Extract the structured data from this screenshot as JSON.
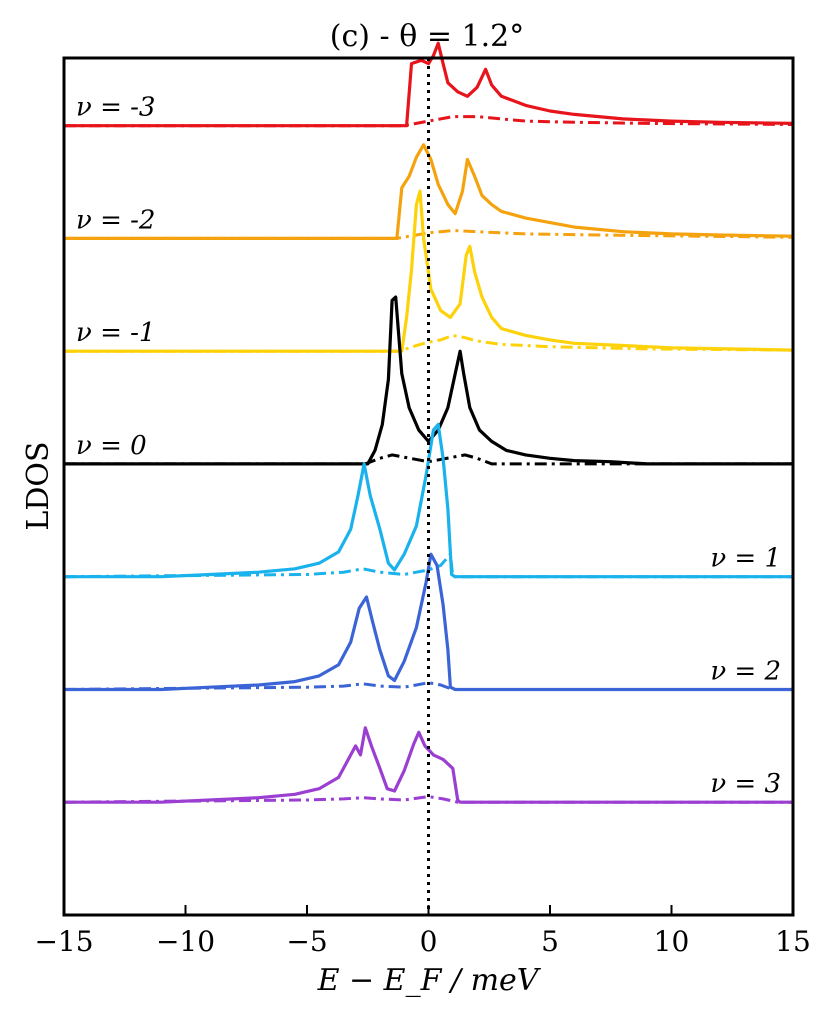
{
  "chart_data": {
    "type": "line",
    "title": "(c) - θ = 1.2°",
    "xlabel": "E − E_F / meV",
    "ylabel": "LDOS",
    "xlim": [
      -15,
      15
    ],
    "xticks": [
      -15,
      -10,
      -5,
      0,
      5,
      10,
      15
    ],
    "xtick_labels": [
      "−15",
      "−10",
      "−5",
      "0",
      "5",
      "10",
      "15"
    ],
    "ylim": [
      -1,
      6.6
    ],
    "yticks_hidden": true,
    "fermi_level_line": {
      "x": 0,
      "style": "dotted",
      "color": "#000000"
    },
    "series": [
      {
        "name": "ν = -3",
        "label": "ν = -3",
        "color": "#e8141c",
        "offset": 6,
        "label_side": "left",
        "solid": [
          [
            -15,
            0
          ],
          [
            -0.9,
            0
          ],
          [
            -0.7,
            0.55
          ],
          [
            -0.3,
            0.58
          ],
          [
            0,
            0.55
          ],
          [
            0.2,
            0.62
          ],
          [
            0.4,
            0.73
          ],
          [
            0.6,
            0.55
          ],
          [
            0.8,
            0.38
          ],
          [
            1.2,
            0.3
          ],
          [
            1.6,
            0.26
          ],
          [
            2.0,
            0.34
          ],
          [
            2.35,
            0.5
          ],
          [
            2.6,
            0.36
          ],
          [
            3.0,
            0.26
          ],
          [
            3.5,
            0.22
          ],
          [
            4.0,
            0.18
          ],
          [
            5.0,
            0.13
          ],
          [
            6.0,
            0.1
          ],
          [
            7.0,
            0.08
          ],
          [
            8.0,
            0.06
          ],
          [
            9.0,
            0.05
          ],
          [
            10.0,
            0.04
          ],
          [
            12.0,
            0.03
          ],
          [
            15.0,
            0.02
          ]
        ],
        "dashdot": [
          [
            -15,
            0
          ],
          [
            -1.0,
            0
          ],
          [
            -0.5,
            0.02
          ],
          [
            0,
            0.04
          ],
          [
            0.5,
            0.06
          ],
          [
            1.0,
            0.08
          ],
          [
            2.0,
            0.08
          ],
          [
            3.0,
            0.06
          ],
          [
            4.0,
            0.04
          ],
          [
            6.0,
            0.03
          ],
          [
            9.0,
            0.02
          ],
          [
            15.0,
            0.01
          ]
        ]
      },
      {
        "name": "ν = -2",
        "label": "ν = -2",
        "color": "#f5a20f",
        "offset": 5,
        "label_side": "left",
        "solid": [
          [
            -15,
            0
          ],
          [
            -1.3,
            0
          ],
          [
            -1.1,
            0.45
          ],
          [
            -0.8,
            0.55
          ],
          [
            -0.5,
            0.72
          ],
          [
            -0.2,
            0.83
          ],
          [
            0.1,
            0.7
          ],
          [
            0.4,
            0.48
          ],
          [
            0.8,
            0.3
          ],
          [
            1.1,
            0.22
          ],
          [
            1.4,
            0.42
          ],
          [
            1.6,
            0.7
          ],
          [
            1.9,
            0.55
          ],
          [
            2.2,
            0.38
          ],
          [
            2.6,
            0.3
          ],
          [
            3.0,
            0.24
          ],
          [
            4.0,
            0.18
          ],
          [
            5.0,
            0.14
          ],
          [
            6.0,
            0.1
          ],
          [
            7.0,
            0.08
          ],
          [
            8.0,
            0.06
          ],
          [
            10.0,
            0.04
          ],
          [
            12.0,
            0.03
          ],
          [
            15.0,
            0.02
          ]
        ],
        "dashdot": [
          [
            -15,
            0
          ],
          [
            -1.3,
            0
          ],
          [
            -0.5,
            0.03
          ],
          [
            0,
            0.05
          ],
          [
            0.5,
            0.06
          ],
          [
            1.0,
            0.07
          ],
          [
            2.0,
            0.06
          ],
          [
            4.0,
            0.04
          ],
          [
            7.0,
            0.03
          ],
          [
            15.0,
            0.01
          ]
        ]
      },
      {
        "name": "ν = -1",
        "label": "ν = -1",
        "color": "#fdd20a",
        "offset": 4,
        "label_side": "left",
        "solid": [
          [
            -15,
            0
          ],
          [
            -1.1,
            0
          ],
          [
            -0.9,
            0.3
          ],
          [
            -0.7,
            0.72
          ],
          [
            -0.5,
            1.3
          ],
          [
            -0.35,
            1.42
          ],
          [
            -0.2,
            1.0
          ],
          [
            0.1,
            0.55
          ],
          [
            0.5,
            0.36
          ],
          [
            0.9,
            0.3
          ],
          [
            1.3,
            0.42
          ],
          [
            1.55,
            0.85
          ],
          [
            1.7,
            0.93
          ],
          [
            1.9,
            0.7
          ],
          [
            2.2,
            0.48
          ],
          [
            2.6,
            0.3
          ],
          [
            3.0,
            0.2
          ],
          [
            4.0,
            0.14
          ],
          [
            5.0,
            0.1
          ],
          [
            6.0,
            0.07
          ],
          [
            8.0,
            0.05
          ],
          [
            10.0,
            0.03
          ],
          [
            15.0,
            0.01
          ]
        ],
        "dashdot": [
          [
            -15,
            0
          ],
          [
            -1.2,
            0
          ],
          [
            -0.5,
            0.05
          ],
          [
            0,
            0.08
          ],
          [
            0.5,
            0.1
          ],
          [
            1.0,
            0.14
          ],
          [
            1.5,
            0.12
          ],
          [
            2.0,
            0.09
          ],
          [
            3.0,
            0.06
          ],
          [
            5.0,
            0.04
          ],
          [
            9.0,
            0.02
          ],
          [
            15.0,
            0.01
          ]
        ]
      },
      {
        "name": "ν = 0",
        "label": "ν = 0",
        "color": "#000000",
        "offset": 3,
        "label_side": "left",
        "solid": [
          [
            -15,
            0
          ],
          [
            -2.5,
            0
          ],
          [
            -2.2,
            0.12
          ],
          [
            -1.9,
            0.35
          ],
          [
            -1.65,
            0.75
          ],
          [
            -1.5,
            1.45
          ],
          [
            -1.35,
            1.48
          ],
          [
            -1.1,
            0.8
          ],
          [
            -0.8,
            0.5
          ],
          [
            -0.4,
            0.3
          ],
          [
            0,
            0.2
          ],
          [
            0.4,
            0.3
          ],
          [
            0.8,
            0.5
          ],
          [
            1.1,
            0.8
          ],
          [
            1.3,
            1.0
          ],
          [
            1.45,
            0.8
          ],
          [
            1.7,
            0.5
          ],
          [
            2.1,
            0.3
          ],
          [
            2.6,
            0.2
          ],
          [
            3.2,
            0.12
          ],
          [
            4.0,
            0.08
          ],
          [
            5.0,
            0.05
          ],
          [
            6.0,
            0.03
          ],
          [
            7.5,
            0.02
          ],
          [
            9.0,
            0.0
          ],
          [
            15,
            0
          ]
        ],
        "dashdot": [
          [
            -15,
            0
          ],
          [
            -2.6,
            0
          ],
          [
            -2.0,
            0.05
          ],
          [
            -1.5,
            0.08
          ],
          [
            -1.0,
            0.06
          ],
          [
            0,
            0.02
          ],
          [
            1.0,
            0.06
          ],
          [
            1.5,
            0.08
          ],
          [
            2.0,
            0.05
          ],
          [
            2.6,
            0
          ],
          [
            15,
            0
          ]
        ]
      },
      {
        "name": "ν = 1",
        "label": "ν = 1",
        "color": "#1ab2ec",
        "offset": 2,
        "label_side": "right",
        "solid": [
          [
            -15,
            0
          ],
          [
            -11,
            0
          ],
          [
            -9,
            0.02
          ],
          [
            -7,
            0.04
          ],
          [
            -5.5,
            0.07
          ],
          [
            -4.5,
            0.12
          ],
          [
            -3.7,
            0.22
          ],
          [
            -3.2,
            0.42
          ],
          [
            -2.9,
            0.72
          ],
          [
            -2.65,
            1.0
          ],
          [
            -2.4,
            0.72
          ],
          [
            -2.0,
            0.42
          ],
          [
            -1.65,
            0.12
          ],
          [
            -1.4,
            0.06
          ],
          [
            -1.0,
            0.2
          ],
          [
            -0.5,
            0.45
          ],
          [
            -0.1,
            0.9
          ],
          [
            0.2,
            1.3
          ],
          [
            0.4,
            1.35
          ],
          [
            0.6,
            1.05
          ],
          [
            0.8,
            0.6
          ],
          [
            0.95,
            0.02
          ],
          [
            1.1,
            0
          ],
          [
            15,
            0
          ]
        ],
        "dashdot": [
          [
            -15,
            0
          ],
          [
            -10,
            0.01
          ],
          [
            -5,
            0.02
          ],
          [
            -3.5,
            0.04
          ],
          [
            -2.7,
            0.07
          ],
          [
            -2.0,
            0.04
          ],
          [
            -1.0,
            0.02
          ],
          [
            0,
            0.06
          ],
          [
            0.5,
            0.1
          ],
          [
            0.9,
            0.2
          ],
          [
            1.0,
            0
          ],
          [
            15,
            0
          ]
        ]
      },
      {
        "name": "ν = 2",
        "label": "ν = 2",
        "color": "#3b64d6",
        "offset": 1,
        "label_side": "right",
        "solid": [
          [
            -15,
            0
          ],
          [
            -11,
            0
          ],
          [
            -9,
            0.02
          ],
          [
            -7,
            0.04
          ],
          [
            -5.5,
            0.07
          ],
          [
            -4.5,
            0.12
          ],
          [
            -3.7,
            0.22
          ],
          [
            -3.2,
            0.42
          ],
          [
            -2.85,
            0.72
          ],
          [
            -2.55,
            0.82
          ],
          [
            -2.3,
            0.6
          ],
          [
            -2.0,
            0.35
          ],
          [
            -1.65,
            0.12
          ],
          [
            -1.4,
            0.08
          ],
          [
            -1.0,
            0.25
          ],
          [
            -0.5,
            0.55
          ],
          [
            -0.1,
            0.95
          ],
          [
            0.1,
            1.2
          ],
          [
            0.35,
            1.1
          ],
          [
            0.6,
            0.75
          ],
          [
            0.8,
            0.35
          ],
          [
            0.9,
            0.02
          ],
          [
            1.1,
            0
          ],
          [
            15,
            0
          ]
        ],
        "dashdot": [
          [
            -15,
            0
          ],
          [
            -10,
            0.01
          ],
          [
            -5,
            0.02
          ],
          [
            -3.5,
            0.03
          ],
          [
            -2.7,
            0.05
          ],
          [
            -2.0,
            0.03
          ],
          [
            -1.0,
            0.02
          ],
          [
            0,
            0.06
          ],
          [
            0.5,
            0.04
          ],
          [
            1.0,
            0
          ],
          [
            15,
            0
          ]
        ]
      },
      {
        "name": "ν = 3",
        "label": "ν = 3",
        "color": "#9a3fd1",
        "offset": 0,
        "label_side": "right",
        "solid": [
          [
            -15,
            0
          ],
          [
            -11,
            0
          ],
          [
            -9,
            0.02
          ],
          [
            -7,
            0.04
          ],
          [
            -5.5,
            0.07
          ],
          [
            -4.5,
            0.12
          ],
          [
            -3.7,
            0.22
          ],
          [
            -3.3,
            0.38
          ],
          [
            -3.0,
            0.5
          ],
          [
            -2.8,
            0.42
          ],
          [
            -2.6,
            0.66
          ],
          [
            -2.35,
            0.5
          ],
          [
            -2.0,
            0.3
          ],
          [
            -1.7,
            0.12
          ],
          [
            -1.4,
            0.1
          ],
          [
            -1.0,
            0.28
          ],
          [
            -0.6,
            0.52
          ],
          [
            -0.4,
            0.62
          ],
          [
            -0.15,
            0.5
          ],
          [
            0.2,
            0.42
          ],
          [
            0.6,
            0.38
          ],
          [
            1.0,
            0.3
          ],
          [
            1.2,
            0.02
          ],
          [
            1.3,
            0
          ],
          [
            15,
            0
          ]
        ],
        "dashdot": [
          [
            -15,
            0
          ],
          [
            -10,
            0.01
          ],
          [
            -5,
            0.02
          ],
          [
            -3.5,
            0.03
          ],
          [
            -2.7,
            0.04
          ],
          [
            -2.0,
            0.03
          ],
          [
            -1.0,
            0.02
          ],
          [
            0,
            0.05
          ],
          [
            0.6,
            0.03
          ],
          [
            1.2,
            0
          ],
          [
            15,
            0
          ]
        ]
      }
    ]
  }
}
